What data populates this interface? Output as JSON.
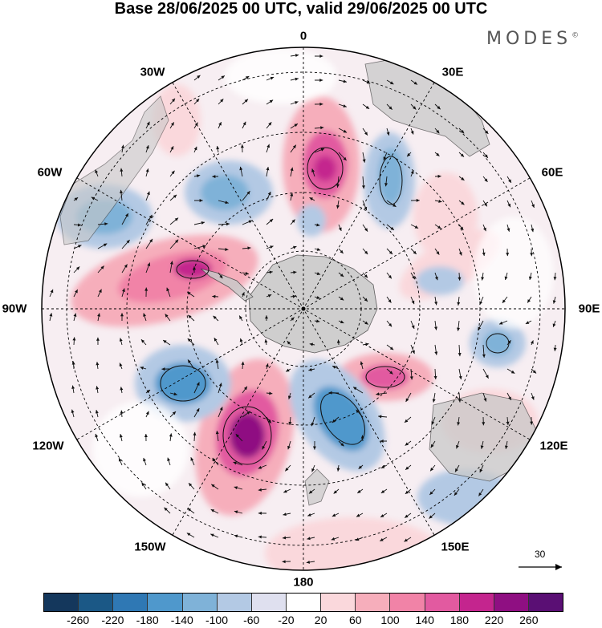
{
  "title": "Base 28/06/2025 00 UTC, valid 29/06/2025 00 UTC",
  "brand": "MODES",
  "brand_mark": "©",
  "longitude_labels": {
    "lon_0": "0",
    "lon_30e": "30E",
    "lon_60e": "60E",
    "lon_90e": "90E",
    "lon_120e": "120E",
    "lon_150e": "150E",
    "lon_180": "180",
    "lon_150w": "150W",
    "lon_120w": "120W",
    "lon_90w": "90W",
    "lon_60w": "60W",
    "lon_30w": "30W"
  },
  "vector_scale": {
    "label": "30",
    "icon": "arrow-right-icon"
  },
  "colorbar": {
    "colors": [
      "#14375c",
      "#1b5886",
      "#2f78b4",
      "#4f98cc",
      "#7fb2d8",
      "#b3c9e4",
      "#dfe0ef",
      "#ffffff",
      "#fad8dc",
      "#f6aebb",
      "#f183a7",
      "#e25aa0",
      "#c4258e",
      "#8f0f82",
      "#5a0f74"
    ],
    "tick_labels": [
      "-260",
      "-220",
      "-180",
      "-140",
      "-100",
      "-60",
      "-20",
      "20",
      "60",
      "100",
      "140",
      "180",
      "220",
      "260"
    ]
  },
  "map_colors": {
    "land": "#c8c8c8",
    "border": "#333333"
  }
}
